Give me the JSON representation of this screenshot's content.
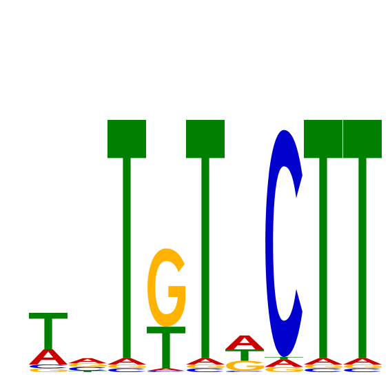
{
  "chart_data": {
    "type": "sequence-logo",
    "title": "",
    "xlabel": "",
    "ylabel": "",
    "alphabet": [
      "A",
      "C",
      "G",
      "T"
    ],
    "colors": {
      "A": "#cc0000",
      "C": "#0000cc",
      "G": "#ffb300",
      "T": "#008000"
    },
    "ylim": [
      0,
      2
    ],
    "positions": [
      {
        "index": 1,
        "letters": [
          [
            "G",
            0.03
          ],
          [
            "C",
            0.03
          ],
          [
            "A",
            0.12
          ],
          [
            "T",
            0.29
          ]
        ]
      },
      {
        "index": 2,
        "letters": [
          [
            "T",
            0.01
          ],
          [
            "C",
            0.03
          ],
          [
            "G",
            0.03
          ],
          [
            "A",
            0.04
          ]
        ]
      },
      {
        "index": 3,
        "letters": [
          [
            "C",
            0.03
          ],
          [
            "G",
            0.03
          ],
          [
            "A",
            0.05
          ],
          [
            "T",
            1.89
          ]
        ]
      },
      {
        "index": 4,
        "letters": [
          [
            "C",
            0.01
          ],
          [
            "A",
            0.02
          ],
          [
            "T",
            0.33
          ],
          [
            "G",
            0.62
          ]
        ]
      },
      {
        "index": 5,
        "letters": [
          [
            "C",
            0.03
          ],
          [
            "G",
            0.03
          ],
          [
            "A",
            0.05
          ],
          [
            "T",
            1.89
          ]
        ]
      },
      {
        "index": 6,
        "letters": [
          [
            "C",
            0.01
          ],
          [
            "G",
            0.08
          ],
          [
            "T",
            0.09
          ],
          [
            "A",
            0.11
          ]
        ]
      },
      {
        "index": 7,
        "letters": [
          [
            "G",
            0.04
          ],
          [
            "A",
            0.06
          ],
          [
            "T",
            0.02
          ],
          [
            "C",
            1.8
          ]
        ]
      },
      {
        "index": 8,
        "letters": [
          [
            "C",
            0.03
          ],
          [
            "G",
            0.03
          ],
          [
            "A",
            0.05
          ],
          [
            "T",
            1.89
          ]
        ]
      },
      {
        "index": 9,
        "letters": [
          [
            "C",
            0.03
          ],
          [
            "G",
            0.03
          ],
          [
            "A",
            0.05
          ],
          [
            "T",
            1.89
          ]
        ]
      }
    ]
  }
}
